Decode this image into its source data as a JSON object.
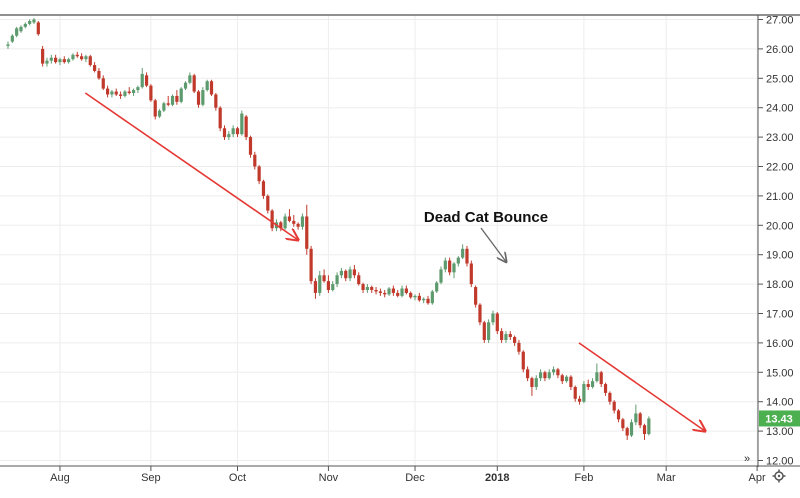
{
  "chart_data": {
    "type": "candlestick",
    "title": "",
    "xlabel": "",
    "ylabel": "",
    "ylim": [
      12.0,
      27.0
    ],
    "y_ticks": [
      "27.00",
      "26.00",
      "25.00",
      "24.00",
      "23.00",
      "22.00",
      "21.00",
      "20.00",
      "19.00",
      "18.00",
      "17.00",
      "16.00",
      "15.00",
      "14.00",
      "13.00",
      "12.00"
    ],
    "x_ticks": [
      {
        "label": "Aug",
        "bar": 12,
        "bold": false
      },
      {
        "label": "Sep",
        "bar": 33,
        "bold": false
      },
      {
        "label": "Oct",
        "bar": 53,
        "bold": false
      },
      {
        "label": "Nov",
        "bar": 74,
        "bold": false
      },
      {
        "label": "Dec",
        "bar": 94,
        "bold": false
      },
      {
        "label": "2018",
        "bar": 113,
        "bold": true
      },
      {
        "label": "Feb",
        "bar": 133,
        "bold": false
      },
      {
        "label": "Mar",
        "bar": 152,
        "bold": false
      },
      {
        "label": "Apr",
        "bar": 173,
        "bold": false
      }
    ],
    "last_price": "13.43",
    "colors": {
      "up": "#5d9b6e",
      "down": "#c0392b",
      "trend_arrow": "#e53935",
      "price_badge": "#4caf50"
    },
    "annotation": {
      "text": "Dead Cat Bounce",
      "points_to_bar": 116
    },
    "trend_arrows": [
      {
        "from": [
          4,
          24.5
        ],
        "to": [
          67,
          19.5
        ]
      },
      {
        "from": [
          118,
          16.0
        ],
        "to": [
          161,
          13.0
        ]
      }
    ],
    "candles": [
      [
        26.1,
        26.25,
        26.0,
        26.15
      ],
      [
        26.25,
        26.5,
        26.2,
        26.45
      ],
      [
        26.45,
        26.75,
        26.4,
        26.7
      ],
      [
        26.6,
        26.8,
        26.55,
        26.75
      ],
      [
        26.75,
        26.9,
        26.7,
        26.85
      ],
      [
        26.85,
        27.0,
        26.8,
        26.95
      ],
      [
        26.9,
        27.05,
        26.85,
        27.0
      ],
      [
        26.9,
        26.95,
        26.45,
        26.5
      ],
      [
        26.0,
        26.1,
        25.4,
        25.5
      ],
      [
        25.5,
        25.7,
        25.4,
        25.6
      ],
      [
        25.6,
        25.8,
        25.5,
        25.7
      ],
      [
        25.7,
        25.8,
        25.5,
        25.55
      ],
      [
        25.55,
        25.7,
        25.45,
        25.65
      ],
      [
        25.65,
        25.75,
        25.5,
        25.55
      ],
      [
        25.55,
        25.7,
        25.5,
        25.65
      ],
      [
        25.65,
        25.85,
        25.6,
        25.8
      ],
      [
        25.8,
        25.9,
        25.7,
        25.75
      ],
      [
        25.75,
        25.85,
        25.6,
        25.65
      ],
      [
        25.65,
        25.8,
        25.55,
        25.75
      ],
      [
        25.75,
        25.8,
        25.4,
        25.45
      ],
      [
        25.45,
        25.55,
        25.2,
        25.25
      ],
      [
        25.25,
        25.35,
        24.95,
        25.0
      ],
      [
        25.0,
        25.1,
        24.6,
        24.65
      ],
      [
        24.65,
        24.75,
        24.35,
        24.45
      ],
      [
        24.45,
        24.6,
        24.35,
        24.55
      ],
      [
        24.55,
        24.65,
        24.4,
        24.45
      ],
      [
        24.45,
        24.55,
        24.3,
        24.4
      ],
      [
        24.4,
        24.6,
        24.35,
        24.55
      ],
      [
        24.55,
        24.7,
        24.45,
        24.5
      ],
      [
        24.5,
        24.65,
        24.4,
        24.6
      ],
      [
        24.6,
        24.75,
        24.5,
        24.7
      ],
      [
        24.7,
        25.35,
        24.65,
        25.15
      ],
      [
        25.1,
        25.2,
        24.7,
        24.75
      ],
      [
        24.75,
        24.8,
        24.2,
        24.25
      ],
      [
        24.25,
        24.3,
        23.6,
        23.7
      ],
      [
        23.7,
        23.95,
        23.65,
        23.9
      ],
      [
        23.9,
        24.2,
        23.85,
        24.15
      ],
      [
        24.15,
        24.4,
        24.05,
        24.1
      ],
      [
        24.1,
        24.45,
        24.05,
        24.4
      ],
      [
        24.4,
        24.6,
        24.1,
        24.2
      ],
      [
        24.2,
        24.7,
        24.15,
        24.65
      ],
      [
        24.65,
        24.9,
        24.6,
        24.85
      ],
      [
        24.85,
        25.2,
        24.8,
        25.1
      ],
      [
        25.1,
        25.15,
        24.5,
        24.55
      ],
      [
        24.55,
        24.6,
        24.0,
        24.1
      ],
      [
        24.1,
        24.7,
        24.05,
        24.6
      ],
      [
        24.6,
        24.95,
        24.55,
        24.9
      ],
      [
        24.9,
        24.95,
        24.4,
        24.45
      ],
      [
        24.45,
        24.5,
        23.9,
        24.0
      ],
      [
        24.0,
        24.05,
        23.2,
        23.3
      ],
      [
        23.3,
        23.4,
        22.9,
        23.0
      ],
      [
        23.0,
        23.2,
        22.9,
        23.1
      ],
      [
        23.1,
        23.4,
        23.0,
        23.3
      ],
      [
        23.3,
        23.35,
        23.0,
        23.1
      ],
      [
        23.1,
        23.9,
        23.05,
        23.8
      ],
      [
        23.7,
        23.75,
        22.9,
        23.0
      ],
      [
        23.0,
        23.05,
        22.3,
        22.4
      ],
      [
        22.4,
        22.5,
        21.9,
        22.0
      ],
      [
        22.0,
        22.05,
        21.4,
        21.5
      ],
      [
        21.5,
        21.55,
        20.9,
        21.0
      ],
      [
        21.0,
        21.05,
        20.4,
        20.5
      ],
      [
        20.5,
        20.55,
        19.8,
        19.9
      ],
      [
        19.9,
        20.2,
        19.8,
        20.1
      ],
      [
        20.1,
        20.15,
        19.8,
        19.9
      ],
      [
        19.9,
        20.4,
        19.85,
        20.3
      ],
      [
        20.3,
        20.55,
        20.1,
        20.15
      ],
      [
        20.15,
        20.35,
        19.95,
        20.05
      ],
      [
        20.05,
        20.1,
        19.85,
        19.95
      ],
      [
        19.95,
        20.4,
        19.85,
        20.3
      ],
      [
        20.3,
        20.7,
        19.0,
        19.2
      ],
      [
        19.2,
        19.3,
        18.0,
        18.1
      ],
      [
        18.1,
        18.2,
        17.5,
        17.7
      ],
      [
        17.7,
        18.45,
        17.6,
        18.3
      ],
      [
        18.3,
        18.5,
        18.05,
        18.1
      ],
      [
        18.1,
        18.3,
        17.7,
        17.8
      ],
      [
        17.8,
        18.1,
        17.75,
        18.0
      ],
      [
        18.0,
        18.4,
        17.9,
        18.3
      ],
      [
        18.3,
        18.55,
        18.2,
        18.45
      ],
      [
        18.45,
        18.5,
        18.1,
        18.2
      ],
      [
        18.2,
        18.6,
        18.1,
        18.5
      ],
      [
        18.5,
        18.65,
        18.2,
        18.3
      ],
      [
        18.3,
        18.4,
        17.95,
        18.0
      ],
      [
        18.0,
        18.05,
        17.7,
        17.8
      ],
      [
        17.8,
        18.0,
        17.7,
        17.9
      ],
      [
        17.9,
        17.95,
        17.7,
        17.8
      ],
      [
        17.8,
        17.9,
        17.65,
        17.75
      ],
      [
        17.75,
        17.85,
        17.6,
        17.7
      ],
      [
        17.7,
        17.8,
        17.55,
        17.65
      ],
      [
        17.65,
        17.9,
        17.6,
        17.85
      ],
      [
        17.85,
        17.95,
        17.6,
        17.7
      ],
      [
        17.7,
        17.8,
        17.55,
        17.6
      ],
      [
        17.6,
        17.95,
        17.55,
        17.85
      ],
      [
        17.85,
        17.95,
        17.65,
        17.7
      ],
      [
        17.7,
        17.75,
        17.5,
        17.55
      ],
      [
        17.55,
        17.65,
        17.45,
        17.6
      ],
      [
        17.6,
        17.7,
        17.4,
        17.45
      ],
      [
        17.45,
        17.55,
        17.35,
        17.5
      ],
      [
        17.5,
        17.6,
        17.3,
        17.35
      ],
      [
        17.35,
        17.8,
        17.3,
        17.75
      ],
      [
        17.75,
        18.1,
        17.7,
        18.05
      ],
      [
        18.05,
        18.6,
        18.0,
        18.5
      ],
      [
        18.5,
        18.9,
        18.4,
        18.8
      ],
      [
        18.8,
        18.9,
        18.3,
        18.4
      ],
      [
        18.4,
        18.75,
        18.2,
        18.7
      ],
      [
        18.7,
        18.95,
        18.6,
        18.9
      ],
      [
        18.9,
        19.35,
        18.85,
        19.2
      ],
      [
        19.2,
        19.3,
        18.6,
        18.7
      ],
      [
        18.7,
        18.8,
        17.9,
        18.0
      ],
      [
        17.9,
        17.95,
        17.2,
        17.3
      ],
      [
        17.3,
        17.35,
        16.6,
        16.7
      ],
      [
        16.7,
        16.75,
        16.0,
        16.1
      ],
      [
        16.1,
        16.8,
        16.0,
        16.7
      ],
      [
        16.7,
        17.1,
        16.6,
        17.0
      ],
      [
        17.0,
        17.05,
        16.3,
        16.4
      ],
      [
        16.4,
        16.5,
        16.0,
        16.1
      ],
      [
        16.1,
        16.4,
        16.0,
        16.3
      ],
      [
        16.3,
        16.4,
        16.1,
        16.2
      ],
      [
        16.2,
        16.25,
        15.9,
        16.0
      ],
      [
        16.0,
        16.1,
        15.6,
        15.7
      ],
      [
        15.7,
        15.75,
        15.0,
        15.1
      ],
      [
        15.1,
        15.2,
        14.7,
        14.8
      ],
      [
        14.8,
        14.85,
        14.2,
        14.5
      ],
      [
        14.5,
        14.9,
        14.4,
        14.8
      ],
      [
        14.8,
        15.1,
        14.7,
        15.0
      ],
      [
        15.0,
        15.05,
        14.7,
        14.8
      ],
      [
        14.8,
        15.1,
        14.75,
        15.0
      ],
      [
        15.0,
        15.2,
        14.9,
        15.1
      ],
      [
        15.1,
        15.15,
        14.8,
        14.9
      ],
      [
        14.9,
        14.95,
        14.6,
        14.7
      ],
      [
        14.7,
        14.9,
        14.65,
        14.85
      ],
      [
        14.85,
        14.9,
        14.4,
        14.5
      ],
      [
        14.5,
        14.55,
        14.0,
        14.1
      ],
      [
        14.1,
        14.2,
        13.9,
        14.0
      ],
      [
        14.0,
        14.7,
        13.95,
        14.6
      ],
      [
        14.6,
        14.75,
        14.4,
        14.5
      ],
      [
        14.5,
        14.8,
        14.45,
        14.7
      ],
      [
        14.7,
        15.3,
        14.65,
        15.0
      ],
      [
        15.0,
        15.05,
        14.5,
        14.6
      ],
      [
        14.6,
        14.65,
        14.2,
        14.3
      ],
      [
        14.3,
        14.35,
        13.9,
        14.0
      ],
      [
        14.0,
        14.05,
        13.6,
        13.7
      ],
      [
        13.7,
        13.75,
        13.3,
        13.4
      ],
      [
        13.4,
        13.45,
        13.0,
        13.1
      ],
      [
        13.1,
        13.15,
        12.7,
        12.85
      ],
      [
        12.85,
        13.4,
        12.8,
        13.3
      ],
      [
        13.3,
        13.9,
        13.2,
        13.6
      ],
      [
        13.6,
        13.65,
        13.1,
        13.2
      ],
      [
        13.2,
        13.25,
        12.7,
        12.9
      ],
      [
        12.9,
        13.5,
        12.85,
        13.43
      ]
    ]
  },
  "ui": {
    "nav_arrow": "»",
    "settings_icon": "gear-icon"
  }
}
